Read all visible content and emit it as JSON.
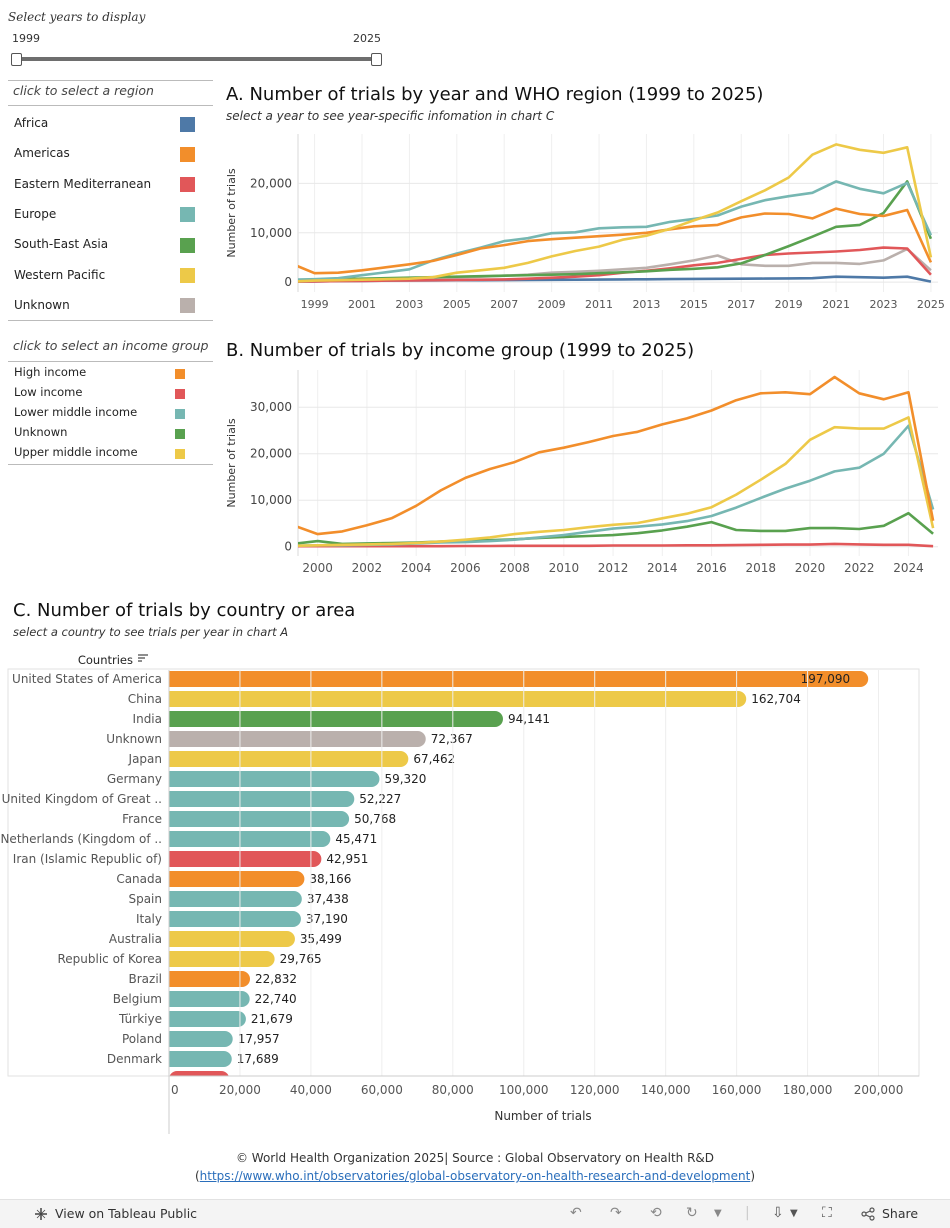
{
  "slider": {
    "title": "Select years to display",
    "min_label": "1999",
    "max_label": "2025"
  },
  "region_legend": {
    "title": "click to select a region",
    "items": [
      {
        "label": "Africa",
        "color": "#4e79a7"
      },
      {
        "label": "Americas",
        "color": "#f28e2b"
      },
      {
        "label": "Eastern Mediterranean",
        "color": "#e15759"
      },
      {
        "label": "Europe",
        "color": "#76b7b2"
      },
      {
        "label": "South-East Asia",
        "color": "#59a14f"
      },
      {
        "label": "Western Pacific",
        "color": "#edc948"
      },
      {
        "label": "Unknown",
        "color": "#bab0ac"
      }
    ]
  },
  "income_legend": {
    "title": "click to select an income group",
    "items": [
      {
        "label": "High income",
        "color": "#f28e2b"
      },
      {
        "label": "Low income",
        "color": "#e15759"
      },
      {
        "label": "Lower middle income",
        "color": "#76b7b2"
      },
      {
        "label": "Unknown",
        "color": "#59a14f"
      },
      {
        "label": "Upper middle income",
        "color": "#edc948"
      }
    ]
  },
  "chart_a_header": {
    "title": "A. Number  of trials by year and WHO region (1999 to 2025)",
    "subtitle": "select a year to see year-specific infomation in chart C"
  },
  "chart_b_header": {
    "title": "B. Number of trials by income group (1999 to 2025)"
  },
  "chart_c_header": {
    "title": "C. Number of trials by country or area",
    "subtitle": "select a country to see trials per year in chart A",
    "column_header": "Countries"
  },
  "chart_data": [
    {
      "type": "line",
      "title": "A. Number  of trials by year and WHO region (1999 to 2025)",
      "xlabel": "",
      "ylabel": "Number of trials",
      "xlim": [
        1998.3,
        2025.3
      ],
      "ylim": [
        -2000,
        30000
      ],
      "y_ticks": [
        0,
        10000,
        20000
      ],
      "y_tick_labels": [
        "0",
        "10,000",
        "20,000"
      ],
      "x_ticks": [
        1999,
        2001,
        2003,
        2005,
        2007,
        2009,
        2011,
        2013,
        2015,
        2017,
        2019,
        2021,
        2023,
        2025
      ],
      "x_tick_labels": [
        "1999",
        "2001",
        "2003",
        "2005",
        "2007",
        "2009",
        "2011",
        "2013",
        "2015",
        "2017",
        "2019",
        "2021",
        "2023",
        "2025"
      ],
      "x": [
        1998,
        1999,
        2000,
        2001,
        2002,
        2003,
        2004,
        2005,
        2006,
        2007,
        2008,
        2009,
        2010,
        2011,
        2012,
        2013,
        2014,
        2015,
        2016,
        2017,
        2018,
        2019,
        2020,
        2021,
        2022,
        2023,
        2024,
        2025
      ],
      "series": [
        {
          "name": "Unknown",
          "color": "#bab0ac",
          "values": [
            200,
            400,
            500,
            600,
            700,
            800,
            900,
            1000,
            1100,
            1300,
            1500,
            1900,
            2100,
            2300,
            2600,
            2900,
            3600,
            4400,
            5400,
            3600,
            3300,
            3300,
            3900,
            3900,
            3700,
            4400,
            6700,
            2400
          ]
        },
        {
          "name": "Africa",
          "color": "#4e79a7",
          "values": [
            100,
            150,
            200,
            250,
            300,
            320,
            350,
            380,
            400,
            420,
            450,
            480,
            500,
            520,
            550,
            580,
            620,
            650,
            680,
            700,
            720,
            750,
            800,
            1100,
            1000,
            900,
            1100,
            100
          ]
        },
        {
          "name": "Eastern Mediterranean",
          "color": "#e15759",
          "values": [
            100,
            150,
            200,
            250,
            300,
            350,
            400,
            450,
            500,
            550,
            700,
            900,
            1100,
            1400,
            1900,
            2300,
            2800,
            3400,
            3900,
            4700,
            5500,
            5800,
            6000,
            6200,
            6500,
            7000,
            6800,
            1500
          ]
        },
        {
          "name": "South-East Asia",
          "color": "#59a14f",
          "values": [
            300,
            500,
            600,
            700,
            800,
            900,
            1000,
            1100,
            1200,
            1300,
            1400,
            1500,
            1600,
            1800,
            2000,
            2200,
            2500,
            2700,
            3000,
            3800,
            5500,
            7300,
            9200,
            11200,
            11600,
            14000,
            20400,
            8800
          ]
        },
        {
          "name": "Europe",
          "color": "#76b7b2",
          "values": [
            500,
            600,
            800,
            1400,
            2000,
            2600,
            4400,
            5800,
            7000,
            8300,
            8900,
            9900,
            10100,
            10900,
            11100,
            11200,
            12200,
            12800,
            13500,
            15300,
            16600,
            17400,
            18100,
            20400,
            18900,
            18000,
            20100,
            9500
          ]
        },
        {
          "name": "Americas",
          "color": "#f28e2b",
          "values": [
            3800,
            1800,
            1900,
            2400,
            3000,
            3600,
            4300,
            5500,
            6800,
            7500,
            8300,
            8700,
            9000,
            9300,
            9600,
            10000,
            10700,
            11300,
            11600,
            13100,
            13900,
            13800,
            12900,
            14900,
            13800,
            13400,
            14600,
            4000
          ]
        },
        {
          "name": "Western Pacific",
          "color": "#edc948",
          "values": [
            100,
            300,
            400,
            500,
            600,
            700,
            1000,
            1900,
            2400,
            2900,
            3900,
            5200,
            6300,
            7200,
            8600,
            9400,
            10800,
            12500,
            14100,
            16400,
            18600,
            21200,
            25800,
            27900,
            26800,
            26200,
            27300,
            5000
          ]
        }
      ]
    },
    {
      "type": "line",
      "title": "B. Number of trials by income group (1999 to 2025)",
      "xlabel": "",
      "ylabel": "Number of trials",
      "xlim": [
        1999.2,
        2025.2
      ],
      "ylim": [
        -2000,
        38000
      ],
      "y_ticks": [
        0,
        10000,
        20000,
        30000
      ],
      "y_tick_labels": [
        "0",
        "10,000",
        "20,000",
        "30,000"
      ],
      "x_ticks": [
        2000,
        2002,
        2004,
        2006,
        2008,
        2010,
        2012,
        2014,
        2016,
        2018,
        2020,
        2022,
        2024
      ],
      "x_tick_labels": [
        "2000",
        "2002",
        "2004",
        "2006",
        "2008",
        "2010",
        "2012",
        "2014",
        "2016",
        "2018",
        "2020",
        "2022",
        "2024"
      ],
      "x": [
        1999,
        2000,
        2001,
        2002,
        2003,
        2004,
        2005,
        2006,
        2007,
        2008,
        2009,
        2010,
        2011,
        2012,
        2013,
        2014,
        2015,
        2016,
        2017,
        2018,
        2019,
        2020,
        2021,
        2022,
        2023,
        2024,
        2025
      ],
      "series": [
        {
          "name": "Low income",
          "color": "#e15759",
          "values": [
            100,
            100,
            100,
            100,
            100,
            100,
            100,
            150,
            150,
            200,
            200,
            200,
            200,
            250,
            250,
            250,
            300,
            300,
            350,
            400,
            450,
            450,
            600,
            500,
            400,
            400,
            100
          ]
        },
        {
          "name": "Unknown",
          "color": "#59a14f",
          "values": [
            600,
            1200,
            600,
            700,
            800,
            900,
            1100,
            1300,
            1400,
            1600,
            1900,
            2100,
            2300,
            2500,
            2900,
            3500,
            4300,
            5300,
            3600,
            3400,
            3400,
            4000,
            4000,
            3800,
            4500,
            7200,
            2800
          ]
        },
        {
          "name": "Lower middle income",
          "color": "#76b7b2",
          "values": [
            200,
            300,
            300,
            400,
            500,
            700,
            900,
            1000,
            1200,
            1500,
            2000,
            2500,
            3200,
            3900,
            4300,
            4800,
            5500,
            6600,
            8400,
            10500,
            12500,
            14200,
            16200,
            17000,
            20000,
            26000,
            8000
          ]
        },
        {
          "name": "Upper middle income",
          "color": "#edc948",
          "values": [
            200,
            300,
            400,
            500,
            600,
            800,
            1100,
            1500,
            2000,
            2700,
            3200,
            3600,
            4200,
            4700,
            5100,
            6100,
            7100,
            8500,
            11200,
            14400,
            17800,
            23000,
            25700,
            25400,
            25400,
            27800,
            4000
          ]
        },
        {
          "name": "High income",
          "color": "#f28e2b",
          "values": [
            4600,
            2700,
            3300,
            4600,
            6100,
            8800,
            12100,
            14800,
            16700,
            18200,
            20300,
            21300,
            22500,
            23800,
            24700,
            26300,
            27600,
            29300,
            31500,
            33000,
            33200,
            32800,
            36500,
            33000,
            31700,
            33200,
            5600
          ]
        }
      ]
    },
    {
      "type": "bar",
      "orientation": "horizontal",
      "title": "C. Number of trials by country or area",
      "xlabel": "Number of trials",
      "ylabel": "Countries",
      "xlim": [
        0,
        210000
      ],
      "x_ticks": [
        0,
        20000,
        40000,
        60000,
        80000,
        100000,
        120000,
        140000,
        160000,
        180000,
        200000
      ],
      "x_tick_labels": [
        "0",
        "20,000",
        "40,000",
        "60,000",
        "80,000",
        "100,000",
        "120,000",
        "140,000",
        "160,000",
        "180,000",
        "200,000"
      ],
      "categories": [
        "United States of America",
        "China",
        "India",
        "Unknown",
        "Japan",
        "Germany",
        "United Kingdom of Great ..",
        "France",
        "Netherlands (Kingdom of ..",
        "Iran (Islamic Republic of)",
        "Canada",
        "Spain",
        "Italy",
        "Australia",
        "Republic of Korea",
        "Brazil",
        "Belgium",
        "Türkiye",
        "Poland",
        "Denmark"
      ],
      "values": [
        197090,
        162704,
        94141,
        72367,
        67462,
        59320,
        52227,
        50768,
        45471,
        42951,
        38166,
        37438,
        37190,
        35499,
        29765,
        22832,
        22740,
        21679,
        17957,
        17689
      ],
      "value_labels": [
        "197,090",
        "162,704",
        "94,141",
        "72,367",
        "67,462",
        "59,320",
        "52,227",
        "50,768",
        "45,471",
        "42,951",
        "38,166",
        "37,438",
        "37,190",
        "35,499",
        "29,765",
        "22,832",
        "22,740",
        "21,679",
        "17,957",
        "17,689"
      ],
      "colors": [
        "#f28e2b",
        "#edc948",
        "#59a14f",
        "#bab0ac",
        "#edc948",
        "#76b7b2",
        "#76b7b2",
        "#76b7b2",
        "#76b7b2",
        "#e15759",
        "#f28e2b",
        "#76b7b2",
        "#76b7b2",
        "#edc948",
        "#edc948",
        "#f28e2b",
        "#76b7b2",
        "#76b7b2",
        "#76b7b2",
        "#76b7b2"
      ]
    }
  ],
  "footer": {
    "line1": "© World Health Organization 2025| Source : Global Observatory on Health R&D",
    "link_open": "(",
    "link": "https://www.who.int/observatories/global-observatory-on-health-research-and-development",
    "link_close": ")"
  },
  "toolbar": {
    "view_label": "View on Tableau Public",
    "share_label": "Share"
  }
}
